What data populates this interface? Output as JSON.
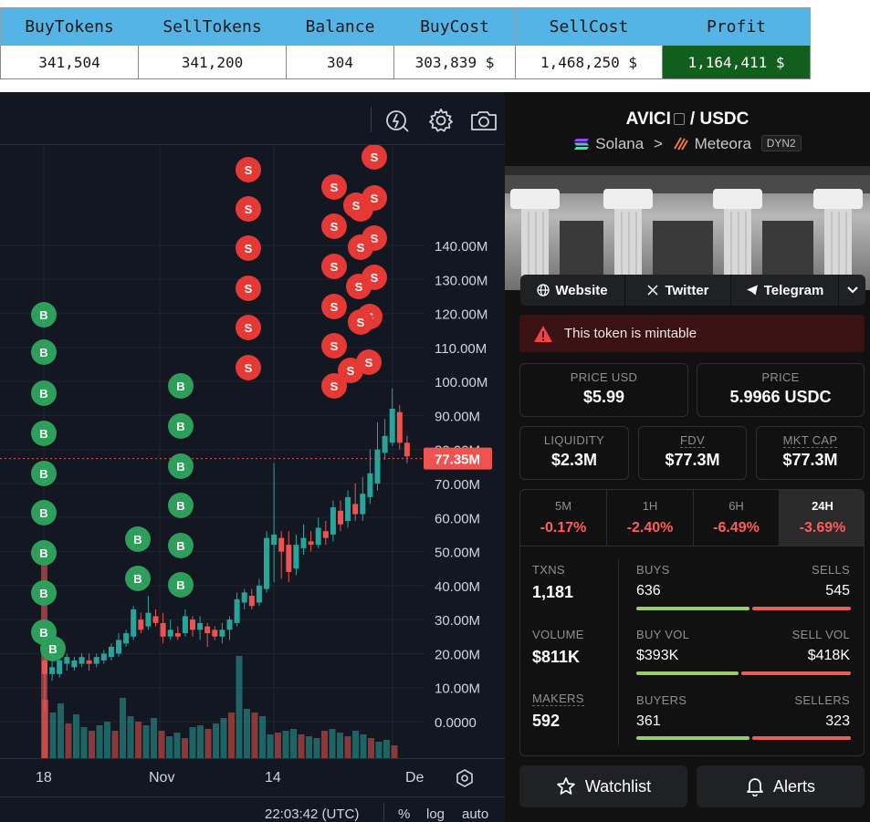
{
  "table": {
    "headers": [
      "BuyTokens",
      "SellTokens",
      "Balance",
      "BuyCost",
      "SellCost",
      "Profit"
    ],
    "values": [
      "341,504",
      "341,200",
      "304",
      "303,839 $",
      "1,468,250 $",
      "1,164,411 $"
    ]
  },
  "chart": {
    "toolbar_icons": [
      "lightning-icon",
      "gear-icon",
      "camera-icon"
    ],
    "price_axis": [
      "140.00M",
      "130.00M",
      "120.00M",
      "110.00M",
      "100.00M",
      "90.00M",
      "80.00M",
      "70.00M",
      "60.00M",
      "50.00M",
      "40.00M",
      "30.00M",
      "20.00M",
      "10.00M",
      "0.0000"
    ],
    "current_price": "77.35M",
    "date_labels": [
      "18",
      "Nov",
      "14",
      "De"
    ],
    "bottom_bar": {
      "time": "22:03:42 (UTC)",
      "percent": "%",
      "log": "log",
      "auto": "auto"
    },
    "buy_marker": "B",
    "sell_marker": "S",
    "colors": {
      "up": "#26a69a",
      "down": "#ef5350",
      "buy_marker": "#2e9e5b",
      "sell_marker": "#e53935"
    }
  },
  "token": {
    "symbol": "AVICI",
    "separator": "/",
    "quote": "USDC",
    "chain": "Solana",
    "chevron": ">",
    "dex": "Meteora",
    "pool_type": "DYN2",
    "links": [
      "Website",
      "Twitter",
      "Telegram"
    ],
    "warning": "This token is mintable",
    "price_usd": {
      "label": "PRICE USD",
      "value": "$5.99"
    },
    "price": {
      "label": "PRICE",
      "value": "5.9966 USDC"
    },
    "liquidity": {
      "label": "LIQUIDITY",
      "value": "$2.3M"
    },
    "fdv": {
      "label": "FDV",
      "value": "$77.3M"
    },
    "mkt_cap": {
      "label": "MKT CAP",
      "value": "$77.3M"
    },
    "timeframes": [
      {
        "name": "5M",
        "change": "-0.17%"
      },
      {
        "name": "1H",
        "change": "-2.40%"
      },
      {
        "name": "6H",
        "change": "-6.49%"
      },
      {
        "name": "24H",
        "change": "-3.69%"
      }
    ],
    "stats": {
      "txns": {
        "label": "TXNS",
        "value": "1,181"
      },
      "volume": {
        "label": "VOLUME",
        "value": "$811K"
      },
      "makers": {
        "label": "MAKERS",
        "value": "592"
      },
      "buys": {
        "label": "BUYS",
        "value": "636"
      },
      "sells": {
        "label": "SELLS",
        "value": "545"
      },
      "buy_vol": {
        "label": "BUY VOL",
        "value": "$393K"
      },
      "sell_vol": {
        "label": "SELL VOL",
        "value": "$418K"
      },
      "buyers": {
        "label": "BUYERS",
        "value": "361"
      },
      "sellers": {
        "label": "SELLERS",
        "value": "323"
      }
    },
    "watchlist_label": "Watchlist",
    "alerts_label": "Alerts"
  }
}
